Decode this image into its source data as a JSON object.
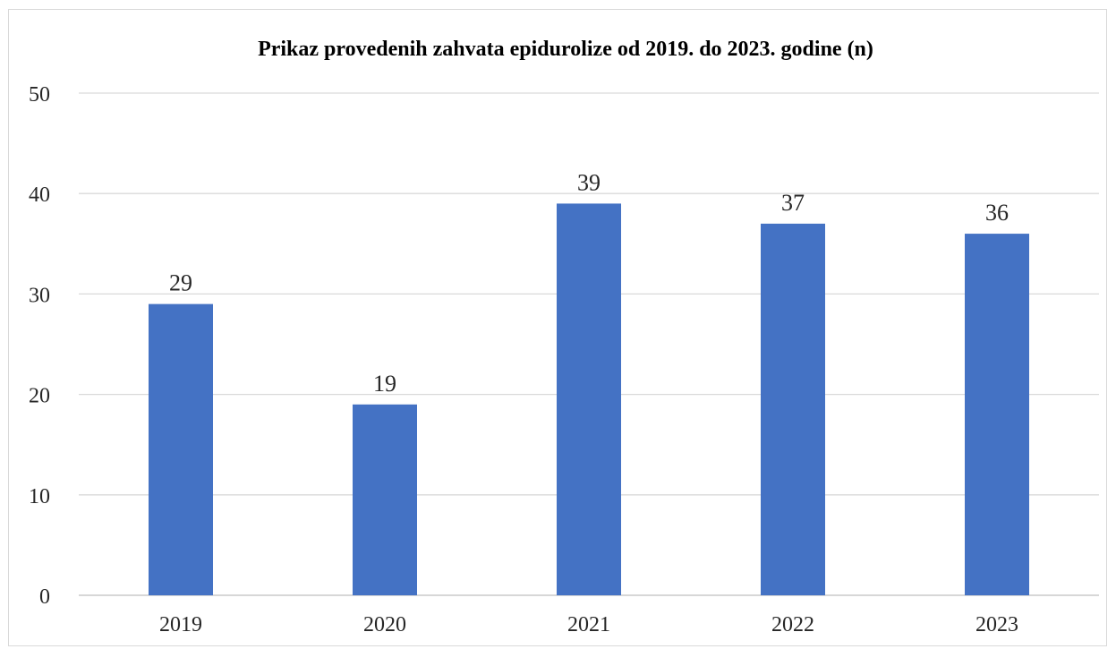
{
  "chart_data": {
    "type": "bar",
    "title": "Prikaz provedenih zahvata epidurolize od 2019. do 2023. godine (n)",
    "categories": [
      "2019",
      "2020",
      "2021",
      "2022",
      "2023"
    ],
    "values": [
      29,
      19,
      39,
      37,
      36
    ],
    "data_labels": [
      "29",
      "19",
      "39",
      "37",
      "36"
    ],
    "y_ticks": [
      "0",
      "10",
      "20",
      "30",
      "40",
      "50"
    ],
    "ylim": [
      0,
      50
    ],
    "grid": true,
    "legend": "none",
    "bar_color": "#4472C4",
    "xlabel": "",
    "ylabel": ""
  }
}
